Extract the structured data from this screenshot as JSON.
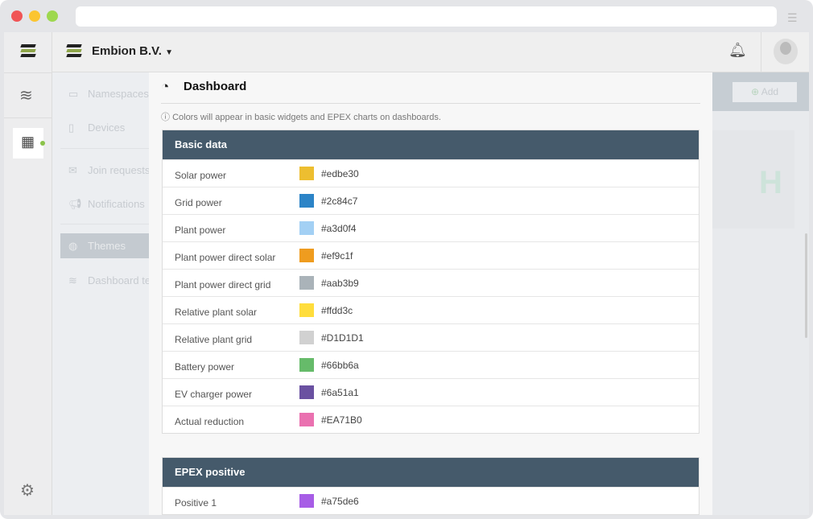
{
  "header": {
    "org_name": "Embion B.V."
  },
  "sidebar": {
    "items": [
      {
        "label": "Namespaces",
        "icon": "folder-icon"
      },
      {
        "label": "Devices",
        "icon": "device-icon"
      },
      {
        "label": "Join requests",
        "icon": "envelope-icon"
      },
      {
        "label": "Notifications",
        "icon": "megaphone-icon"
      },
      {
        "label": "Themes",
        "icon": "palette-icon",
        "active": true
      },
      {
        "label": "Dashboard te",
        "icon": "layers-icon"
      }
    ]
  },
  "right": {
    "add_label": "Add",
    "logo_text": "H"
  },
  "modal": {
    "title": "Dashboard",
    "hint": "Colors will appear in basic widgets and EPEX charts on dashboards.",
    "sections": [
      {
        "title": "Basic data",
        "rows": [
          {
            "label": "Solar power",
            "color": "#edbe30"
          },
          {
            "label": "Grid power",
            "color": "#2c84c7"
          },
          {
            "label": "Plant power",
            "color": "#a3d0f4"
          },
          {
            "label": "Plant power direct solar",
            "color": "#ef9c1f"
          },
          {
            "label": "Plant power direct grid",
            "color": "#aab3b9"
          },
          {
            "label": "Relative plant solar",
            "color": "#ffdd3c"
          },
          {
            "label": "Relative plant grid",
            "color": "#D1D1D1"
          },
          {
            "label": "Battery power",
            "color": "#66bb6a"
          },
          {
            "label": "EV charger power",
            "color": "#6a51a1"
          },
          {
            "label": "Actual reduction",
            "color": "#EA71B0"
          }
        ]
      },
      {
        "title": "EPEX positive",
        "rows": [
          {
            "label": "Positive 1",
            "color": "#a75de6"
          }
        ]
      }
    ]
  }
}
